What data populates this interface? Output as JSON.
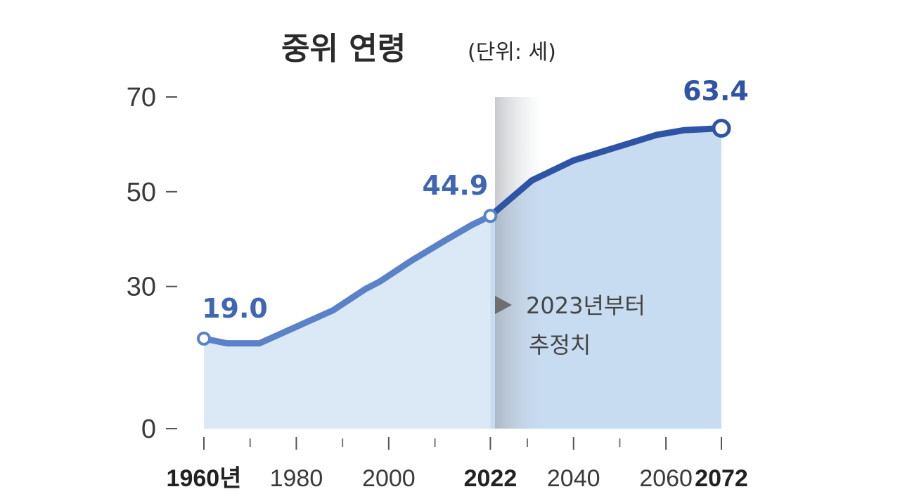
{
  "chart_data": {
    "type": "area",
    "title": "중위 연령",
    "unit_label": "(단위: 세)",
    "x_range": [
      1960,
      2072
    ],
    "ylim": [
      0,
      70
    ],
    "y_ticks": [
      {
        "value": 70,
        "label": "70"
      },
      {
        "value": 50,
        "label": "50"
      },
      {
        "value": 30,
        "label": "30"
      },
      {
        "value": 0,
        "label": "0"
      }
    ],
    "x_tick_labels": [
      {
        "value": 1960,
        "label": "1960년",
        "bold": true
      },
      {
        "value": 1980,
        "label": "1980",
        "bold": false
      },
      {
        "value": 2000,
        "label": "2000",
        "bold": false
      },
      {
        "value": 2022,
        "label": "2022",
        "bold": true
      },
      {
        "value": 2040,
        "label": "2040",
        "bold": false
      },
      {
        "value": 2060,
        "label": "2060",
        "bold": false
      },
      {
        "value": 2072,
        "label": "2072",
        "bold": true
      }
    ],
    "x_minor_ticks": [
      1970,
      1990,
      2010,
      2030,
      2050
    ],
    "series": [
      {
        "segment": "actual",
        "color": "#5b82c8",
        "fill": "#dbe8f6",
        "points": [
          [
            1960,
            19.0
          ],
          [
            1965,
            18.0
          ],
          [
            1972,
            18.0
          ],
          [
            1980,
            21.5
          ],
          [
            1988,
            25.0
          ],
          [
            1995,
            29.5
          ],
          [
            1998,
            31.0
          ],
          [
            2005,
            35.5
          ],
          [
            2012,
            39.6
          ],
          [
            2018,
            43.0
          ],
          [
            2022,
            44.9
          ]
        ]
      },
      {
        "segment": "projected",
        "color": "#2f54a6",
        "fill": "#c7dbf1",
        "points": [
          [
            2022,
            44.9
          ],
          [
            2025,
            47.4
          ],
          [
            2031,
            52.4
          ],
          [
            2040,
            56.6
          ],
          [
            2050,
            59.6
          ],
          [
            2058,
            62.0
          ],
          [
            2064,
            63.0
          ],
          [
            2072,
            63.4
          ]
        ]
      }
    ],
    "data_labels": [
      {
        "x": 1960,
        "y": 19.0,
        "text": "19.0",
        "color": "#3f66b3"
      },
      {
        "x": 2022,
        "y": 44.9,
        "text": "44.9",
        "color": "#3f66b3"
      },
      {
        "x": 2072,
        "y": 63.4,
        "text": "63.4",
        "color": "#2f54a6"
      }
    ],
    "projection_start": 2023,
    "annotation": {
      "line1": "2023년부터",
      "line2": "추정치"
    }
  }
}
